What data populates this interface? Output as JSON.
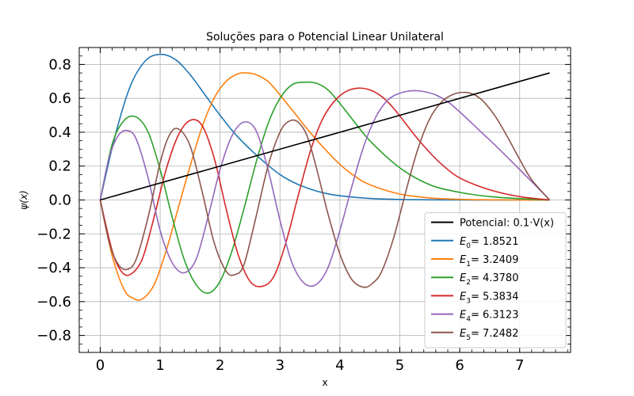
{
  "chart_data": {
    "type": "line",
    "title": "Soluções para o Potencial Linear Unilateral",
    "xlabel": "x",
    "ylabel": "ψ(x)",
    "xlim": [
      -0.35,
      7.85
    ],
    "ylim": [
      -0.9,
      0.9
    ],
    "x_ticks": [
      0,
      1,
      2,
      3,
      4,
      5,
      6,
      7
    ],
    "x_tick_labels": [
      "0",
      "1",
      "2",
      "3",
      "4",
      "5",
      "6",
      "7"
    ],
    "y_ticks": [
      -0.8,
      -0.6,
      -0.4,
      -0.2,
      0.0,
      0.2,
      0.4,
      0.6,
      0.8
    ],
    "y_tick_labels": [
      "−0.8",
      "−0.6",
      "−0.4",
      "−0.2",
      "0.0",
      "0.2",
      "0.4",
      "0.6",
      "0.8"
    ],
    "grid": true,
    "legend_position": "bottom-right",
    "series": [
      {
        "name": "Potencial: 0.1·V(x)",
        "color": "#000000",
        "x": [
          0,
          7.5
        ],
        "y": [
          0,
          0.75
        ]
      },
      {
        "name": "E0 = 1.8521",
        "label_symbol": "E",
        "label_sub": "0",
        "label_value": "= 1.8521",
        "color": "#1f77b4",
        "x": [
          0,
          0.25,
          0.5,
          0.75,
          1.0,
          1.25,
          1.5,
          1.75,
          2.0,
          2.25,
          2.5,
          2.75,
          3.0,
          3.25,
          3.5,
          3.75,
          4.0,
          4.5,
          5.0,
          5.5,
          6.0,
          6.5,
          7.0,
          7.5
        ],
        "y": [
          0,
          0.38,
          0.67,
          0.82,
          0.86,
          0.83,
          0.74,
          0.62,
          0.5,
          0.39,
          0.3,
          0.22,
          0.15,
          0.1,
          0.065,
          0.04,
          0.025,
          0.009,
          0.003,
          0.001,
          0.0,
          0.0,
          0.0,
          0.0
        ]
      },
      {
        "name": "E1 = 3.2409",
        "label_symbol": "E",
        "label_sub": "1",
        "label_value": "= 3.2409",
        "color": "#ff7f0e",
        "x": [
          0,
          0.2,
          0.4,
          0.55,
          0.7,
          0.9,
          1.1,
          1.3,
          1.5,
          1.7,
          1.9,
          2.1,
          2.3,
          2.45,
          2.6,
          2.8,
          3.0,
          3.25,
          3.5,
          3.75,
          4.0,
          4.25,
          4.5,
          5.0,
          5.5,
          6.0,
          6.5,
          7.0,
          7.5
        ],
        "y": [
          0,
          -0.33,
          -0.53,
          -0.58,
          -0.585,
          -0.5,
          -0.3,
          -0.05,
          0.2,
          0.43,
          0.6,
          0.7,
          0.745,
          0.75,
          0.74,
          0.7,
          0.62,
          0.51,
          0.4,
          0.3,
          0.21,
          0.14,
          0.09,
          0.035,
          0.012,
          0.004,
          0.001,
          0.0,
          0.0
        ]
      },
      {
        "name": "E2 = 4.3780",
        "label_symbol": "E",
        "label_sub": "2",
        "label_value": "= 4.3780",
        "color": "#2ca02c",
        "x": [
          0,
          0.2,
          0.4,
          0.6,
          0.8,
          1.0,
          1.2,
          1.4,
          1.6,
          1.8,
          2.0,
          2.2,
          2.4,
          2.6,
          2.8,
          3.0,
          3.2,
          3.4,
          3.6,
          3.8,
          4.0,
          4.2,
          4.5,
          5.0,
          5.5,
          6.0,
          6.5,
          7.0,
          7.5
        ],
        "y": [
          0,
          0.33,
          0.47,
          0.49,
          0.4,
          0.18,
          -0.1,
          -0.35,
          -0.5,
          -0.55,
          -0.48,
          -0.3,
          -0.05,
          0.22,
          0.45,
          0.6,
          0.68,
          0.695,
          0.69,
          0.65,
          0.57,
          0.48,
          0.35,
          0.19,
          0.09,
          0.045,
          0.02,
          0.008,
          0.0
        ]
      },
      {
        "name": "E3 = 5.3834",
        "label_symbol": "E",
        "label_sub": "3",
        "label_value": "= 5.3834",
        "color": "#d62728",
        "x": [
          0,
          0.2,
          0.35,
          0.5,
          0.7,
          0.9,
          1.1,
          1.3,
          1.5,
          1.7,
          1.9,
          2.1,
          2.3,
          2.5,
          2.7,
          2.9,
          3.1,
          3.3,
          3.5,
          3.7,
          3.9,
          4.1,
          4.3,
          4.5,
          4.7,
          4.9,
          5.1,
          5.3,
          5.5,
          5.7,
          6.0,
          6.5,
          7.0,
          7.5
        ],
        "y": [
          0,
          -0.3,
          -0.42,
          -0.44,
          -0.35,
          -0.1,
          0.18,
          0.38,
          0.47,
          0.44,
          0.25,
          -0.05,
          -0.32,
          -0.48,
          -0.51,
          -0.45,
          -0.25,
          0.02,
          0.28,
          0.47,
          0.58,
          0.64,
          0.66,
          0.65,
          0.61,
          0.54,
          0.45,
          0.36,
          0.28,
          0.21,
          0.13,
          0.06,
          0.02,
          0.0
        ]
      },
      {
        "name": "E4 = 6.3123",
        "label_symbol": "E",
        "label_sub": "4",
        "label_value": "= 6.3123",
        "color": "#9467bd",
        "x": [
          0,
          0.15,
          0.3,
          0.45,
          0.6,
          0.8,
          1.0,
          1.2,
          1.4,
          1.6,
          1.8,
          2.0,
          2.2,
          2.4,
          2.6,
          2.8,
          3.0,
          3.2,
          3.4,
          3.6,
          3.8,
          4.0,
          4.2,
          4.4,
          4.6,
          4.8,
          5.0,
          5.2,
          5.4,
          5.6,
          5.8,
          6.0,
          6.3,
          6.6,
          7.0,
          7.5
        ],
        "y": [
          0,
          0.25,
          0.38,
          0.41,
          0.36,
          0.13,
          -0.18,
          -0.37,
          -0.43,
          -0.35,
          -0.1,
          0.18,
          0.38,
          0.46,
          0.41,
          0.18,
          -0.12,
          -0.37,
          -0.49,
          -0.5,
          -0.4,
          -0.18,
          0.08,
          0.32,
          0.49,
          0.59,
          0.63,
          0.645,
          0.64,
          0.62,
          0.58,
          0.52,
          0.42,
          0.32,
          0.18,
          0.0
        ]
      },
      {
        "name": "E5 = 7.2482",
        "label_symbol": "E",
        "label_sub": "5",
        "label_value": "= 7.2482",
        "color": "#8c564b",
        "x": [
          0,
          0.15,
          0.3,
          0.45,
          0.6,
          0.8,
          1.0,
          1.15,
          1.3,
          1.5,
          1.7,
          1.9,
          2.1,
          2.25,
          2.4,
          2.6,
          2.8,
          3.0,
          3.15,
          3.3,
          3.45,
          3.6,
          3.8,
          4.0,
          4.2,
          4.4,
          4.55,
          4.7,
          4.9,
          5.1,
          5.3,
          5.5,
          5.7,
          5.9,
          6.1,
          6.25,
          6.4,
          6.6,
          6.8,
          7.0,
          7.2,
          7.5
        ],
        "y": [
          0,
          -0.25,
          -0.38,
          -0.41,
          -0.35,
          -0.1,
          0.22,
          0.38,
          0.42,
          0.32,
          0.05,
          -0.25,
          -0.42,
          -0.44,
          -0.38,
          -0.1,
          0.2,
          0.4,
          0.465,
          0.46,
          0.38,
          0.2,
          -0.08,
          -0.32,
          -0.47,
          -0.515,
          -0.49,
          -0.42,
          -0.22,
          0.05,
          0.3,
          0.48,
          0.58,
          0.625,
          0.635,
          0.62,
          0.58,
          0.49,
          0.37,
          0.24,
          0.12,
          0.0
        ]
      }
    ]
  }
}
